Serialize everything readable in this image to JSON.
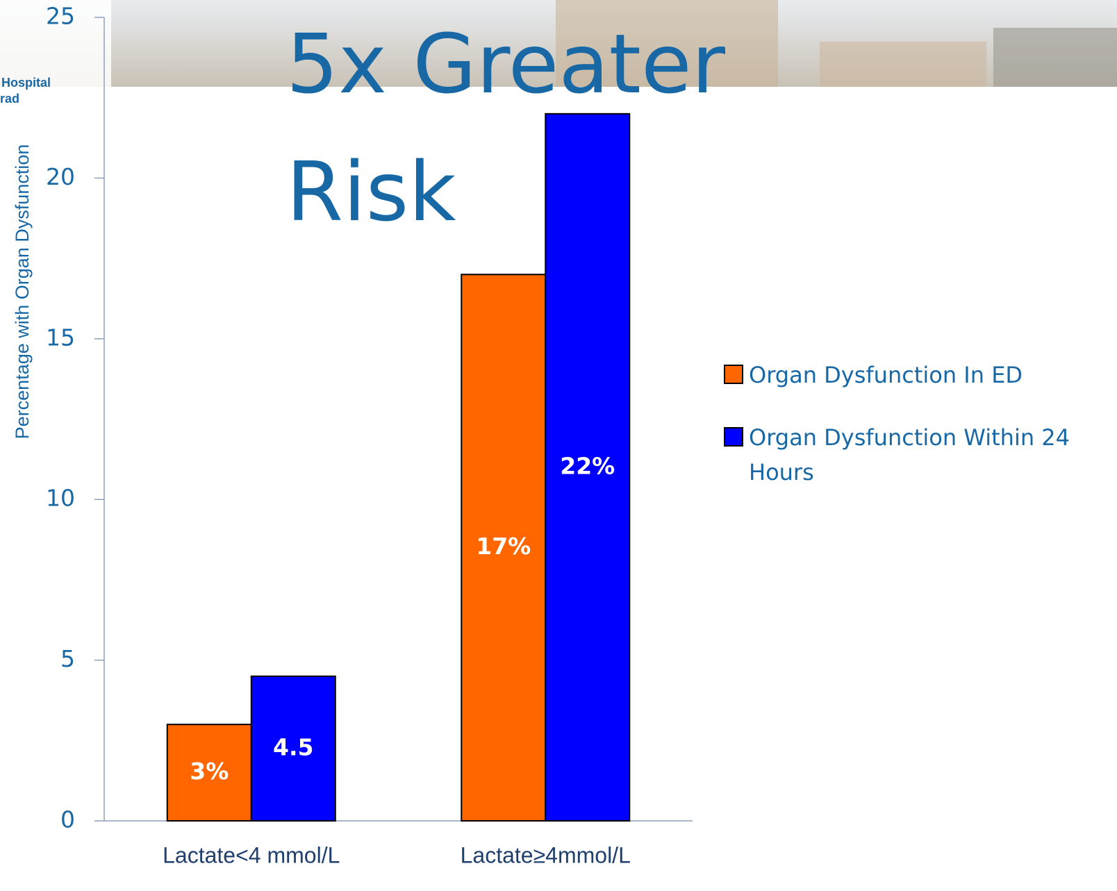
{
  "chart_data": {
    "type": "bar",
    "title": "5x Greater Risk",
    "logo_texts": [
      "Hospital",
      "rad"
    ],
    "y_label": "Percentage with Organ Dysfunction",
    "categories": [
      "Lactate<4 mmol/L",
      "Lactate≥4mmol/L"
    ],
    "series": [
      {
        "name": "Organ Dysfunction In ED",
        "color": "#ff6600",
        "values": [
          3,
          17
        ],
        "value_labels": [
          "3%",
          "17%"
        ]
      },
      {
        "name": "Organ Dysfunction Within 24 Hours",
        "color": "#0000ff",
        "values": [
          4.5,
          22
        ],
        "value_labels": [
          "4.5",
          "22%"
        ]
      }
    ],
    "ylim": [
      0,
      25
    ],
    "yticks": [
      0,
      5,
      10,
      15,
      20,
      25
    ],
    "grid": false,
    "legend": "right"
  }
}
